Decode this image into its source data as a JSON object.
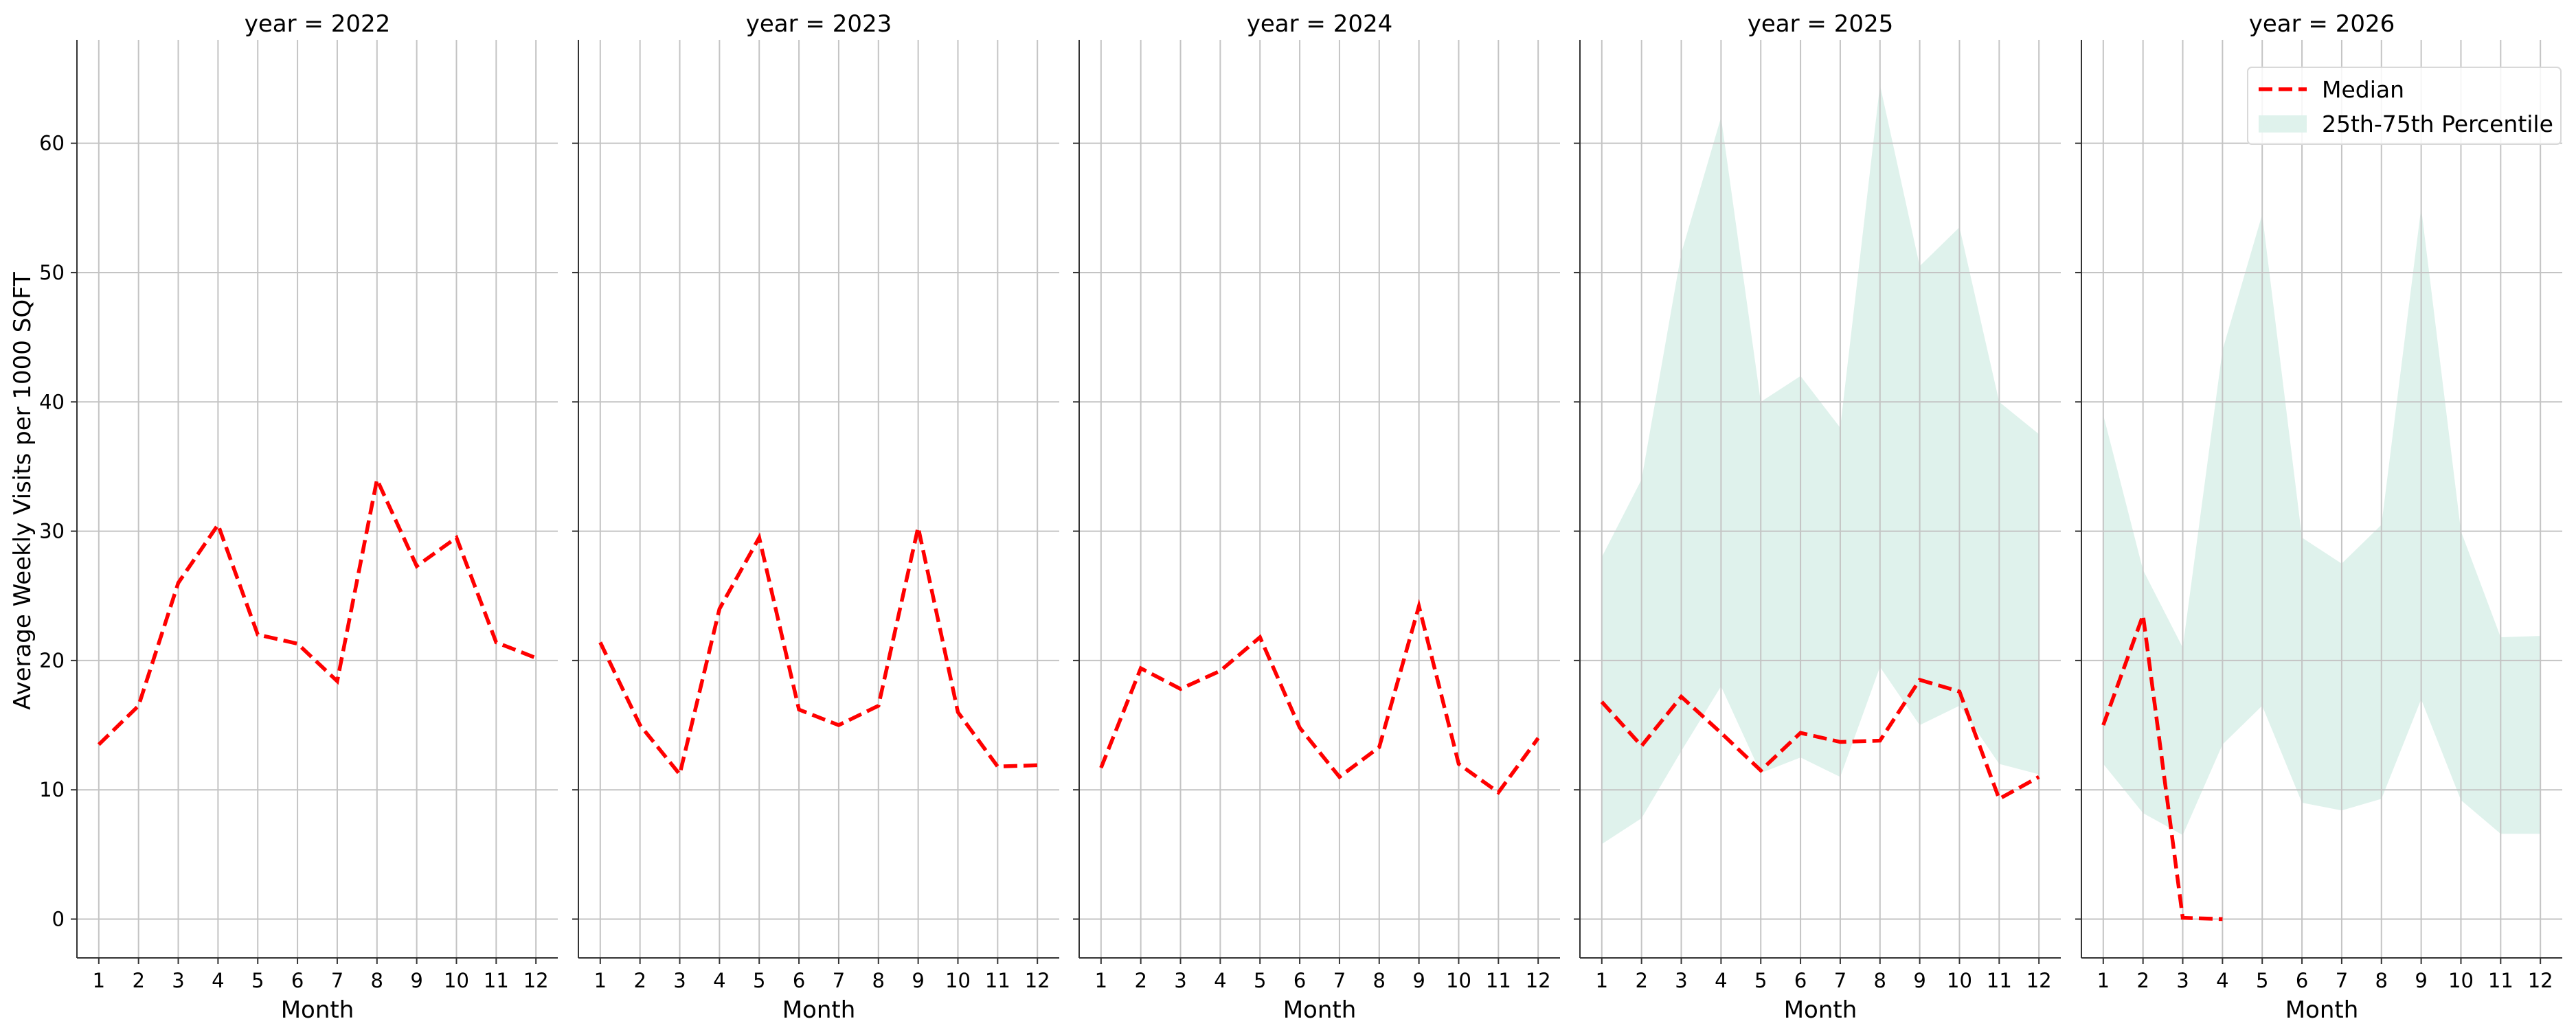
{
  "chart_data": {
    "type": "line",
    "layout": "facet-grid",
    "ylabel": "Average Weekly Visits per 1000 SQFT",
    "xlabel": "Month",
    "x_ticks": [
      "1",
      "2",
      "3",
      "4",
      "5",
      "6",
      "7",
      "8",
      "9",
      "10",
      "11",
      "12"
    ],
    "y_ticks": [
      "0",
      "10",
      "20",
      "30",
      "40",
      "50",
      "60"
    ],
    "ylim": [
      -3,
      68
    ],
    "xlim": [
      0.45,
      12.55
    ],
    "grid": true,
    "legend": {
      "position": "top-right",
      "panel": 4,
      "entries": [
        {
          "label": "Median",
          "style": "dashed-line",
          "color": "#ff0000"
        },
        {
          "label": "25th-75th Percentile",
          "style": "band",
          "color": "#dff2ec"
        }
      ]
    },
    "colors": {
      "median": "#ff0000",
      "band": "#dff2ec",
      "grid": "#c4c4c4",
      "axis": "#333333"
    },
    "panels": [
      {
        "title": "year = 2022",
        "x": [
          1,
          2,
          3,
          4,
          5,
          6,
          7,
          8,
          9,
          10,
          11,
          12
        ],
        "median": [
          13.5,
          16.5,
          26.0,
          30.5,
          22.0,
          21.3,
          18.4,
          34.0,
          27.3,
          29.5,
          21.4,
          20.2
        ],
        "band": null
      },
      {
        "title": "year = 2023",
        "x": [
          1,
          2,
          3,
          4,
          5,
          6,
          7,
          8,
          9,
          10,
          11,
          12
        ],
        "median": [
          21.4,
          15.0,
          11.2,
          24.0,
          29.5,
          16.2,
          15.0,
          16.5,
          30.3,
          16.0,
          11.8,
          11.9
        ],
        "band": null
      },
      {
        "title": "year = 2024",
        "x": [
          1,
          2,
          3,
          4,
          5,
          6,
          7,
          8,
          9,
          10,
          11,
          12
        ],
        "median": [
          11.7,
          19.4,
          17.8,
          19.2,
          21.8,
          14.8,
          11.0,
          13.3,
          24.2,
          12.0,
          9.8,
          14.0
        ],
        "band": null
      },
      {
        "title": "year = 2025",
        "x": [
          1,
          2,
          3,
          4,
          5,
          6,
          7,
          8,
          9,
          10,
          11,
          12
        ],
        "median": [
          16.8,
          13.4,
          17.2,
          14.4,
          11.5,
          14.4,
          13.7,
          13.8,
          18.5,
          17.6,
          9.3,
          11.0
        ],
        "band": {
          "low": [
            5.8,
            7.8,
            13.0,
            18.0,
            11.3,
            12.5,
            11.0,
            19.5,
            15.0,
            16.5,
            12.0,
            11.2
          ],
          "high": [
            28.0,
            34.0,
            51.5,
            62.0,
            40.0,
            42.0,
            38.0,
            64.5,
            50.5,
            53.5,
            40.0,
            37.5
          ]
        }
      },
      {
        "title": "year = 2026",
        "x": [
          1,
          2,
          3,
          4,
          5,
          6,
          7,
          8,
          9,
          10,
          11,
          12
        ],
        "median": [
          15.0,
          23.5,
          0.1,
          0.0,
          null,
          null,
          null,
          null,
          null,
          null,
          null,
          null
        ],
        "band": {
          "low": [
            12.0,
            8.2,
            6.5,
            13.5,
            16.5,
            9.0,
            8.4,
            9.3,
            17.0,
            9.2,
            6.6,
            6.6
          ],
          "high": [
            39.0,
            27.0,
            21.0,
            44.0,
            54.5,
            29.5,
            27.5,
            30.5,
            55.0,
            30.0,
            21.8,
            21.9
          ]
        }
      }
    ]
  }
}
